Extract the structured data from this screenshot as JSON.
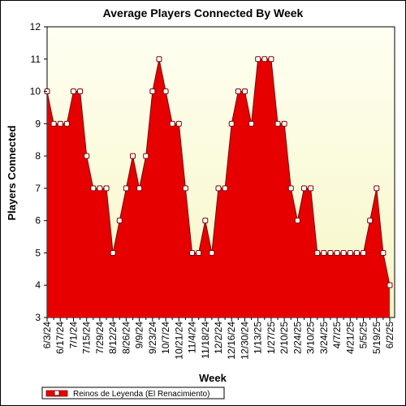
{
  "chart_data": {
    "type": "area",
    "title": "Average Players Connected By Week",
    "xlabel": "Week",
    "ylabel": "Players Connected",
    "ylim": [
      3,
      12
    ],
    "yticks": [
      3,
      4,
      5,
      6,
      7,
      8,
      9,
      10,
      11,
      12
    ],
    "grid": false,
    "legend_position": "bottom-left",
    "x_tick_labels": [
      "6/3/24",
      "6/17/24",
      "7/1/24",
      "7/15/24",
      "7/29/24",
      "8/12/24",
      "8/26/24",
      "9/9/24",
      "9/23/24",
      "10/7/24",
      "10/21/24",
      "11/4/24",
      "11/18/24",
      "12/2/24",
      "12/16/24",
      "12/30/24",
      "1/13/25",
      "1/27/25",
      "2/10/25",
      "2/24/25",
      "3/10/25",
      "3/24/25",
      "4/7/25",
      "4/21/25",
      "5/5/25",
      "5/19/25",
      "6/2/25"
    ],
    "x": [
      "6/3/24",
      "6/10/24",
      "6/17/24",
      "6/24/24",
      "7/1/24",
      "7/8/24",
      "7/15/24",
      "7/22/24",
      "7/29/24",
      "8/5/24",
      "8/12/24",
      "8/19/24",
      "8/26/24",
      "9/2/24",
      "9/9/24",
      "9/16/24",
      "9/23/24",
      "9/30/24",
      "10/7/24",
      "10/14/24",
      "10/21/24",
      "10/28/24",
      "11/4/24",
      "11/11/24",
      "11/18/24",
      "11/25/24",
      "12/2/24",
      "12/9/24",
      "12/16/24",
      "12/23/24",
      "12/30/24",
      "1/6/25",
      "1/13/25",
      "1/20/25",
      "1/27/25",
      "2/3/25",
      "2/10/25",
      "2/17/25",
      "2/24/25",
      "3/3/25",
      "3/10/25",
      "3/17/25",
      "3/24/25",
      "3/31/25",
      "4/7/25",
      "4/14/25",
      "4/21/25",
      "4/28/25",
      "5/5/25",
      "5/12/25",
      "5/19/25",
      "5/26/25",
      "6/2/25"
    ],
    "series": [
      {
        "name": "Reinos de Leyenda (El Renacimiento)",
        "color": "#e60000",
        "values": [
          10,
          9,
          9,
          9,
          10,
          10,
          8,
          7,
          7,
          7,
          5,
          6,
          7,
          8,
          7,
          8,
          10,
          11,
          10,
          9,
          9,
          7,
          5,
          5,
          6,
          5,
          7,
          7,
          9,
          10,
          10,
          9,
          11,
          11,
          11,
          9,
          9,
          7,
          6,
          7,
          7,
          5,
          5,
          5,
          5,
          5,
          5,
          5,
          5,
          6,
          7,
          5,
          4
        ]
      }
    ]
  },
  "colors": {
    "plot_background_top": "#fffff0",
    "plot_background_bottom": "#f7f7c8",
    "area_fill": "#e60000",
    "line": "#800000",
    "marker_fill": "#ffffff"
  }
}
